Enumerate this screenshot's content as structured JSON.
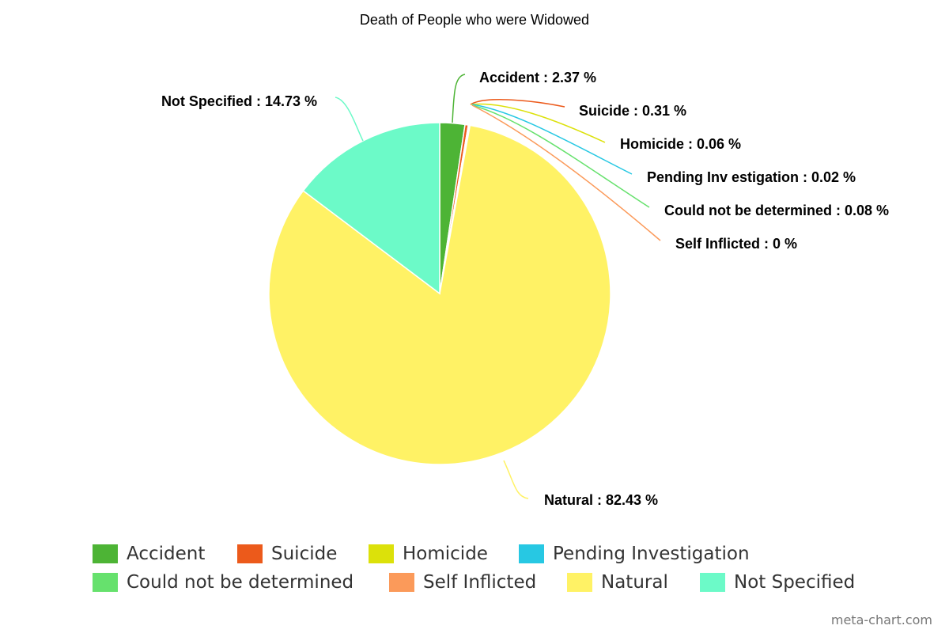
{
  "title": "Death of People who were Widowed",
  "credit": "meta-chart.com",
  "chart_data": {
    "type": "pie",
    "title": "Death of People who were Widowed",
    "start_angle_deg": 0,
    "legend_position": "bottom",
    "slices": [
      {
        "name": "Accident",
        "value": 2.37,
        "label": "Accident : 2.37 %",
        "color": "#4db435"
      },
      {
        "name": "Suicide",
        "value": 0.31,
        "label": "Suicide : 0.31 %",
        "color": "#ec5a1b"
      },
      {
        "name": "Homicide",
        "value": 0.06,
        "label": "Homicide : 0.06 %",
        "color": "#dce10a"
      },
      {
        "name": "Pending Investigation",
        "value": 0.02,
        "label": "Pending Inv estigation : 0.02 %",
        "color": "#27c8e3"
      },
      {
        "name": "Could not be determined",
        "value": 0.08,
        "label": "Could not be determined : 0.08 %",
        "color": "#66e16d"
      },
      {
        "name": "Self Inflicted",
        "value": 0,
        "label": "Self Inflicted : 0 %",
        "color": "#fb9a5a"
      },
      {
        "name": "Natural",
        "value": 82.43,
        "label": "Natural : 82.43 %",
        "color": "#fff265"
      },
      {
        "name": "Not Specified",
        "value": 14.73,
        "label": "Not Specified : 14.73 %",
        "color": "#6cfac8"
      }
    ]
  }
}
